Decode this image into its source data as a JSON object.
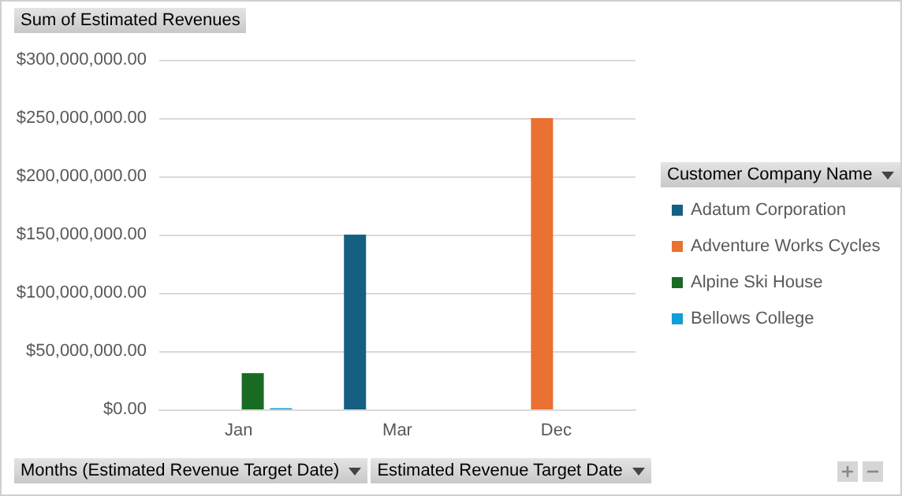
{
  "chart_data": {
    "type": "bar",
    "title": "Sum of Estimated Revenues",
    "legend_title": "Customer Company Name",
    "annotations": [
      "Months (Estimated Revenue Target Date)",
      "Estimated Revenue Target Date"
    ],
    "categories": [
      "Jan",
      "Mar",
      "Dec"
    ],
    "series": [
      {
        "name": "Adatum Corporation",
        "color": "#156082",
        "values": [
          null,
          150000000,
          null
        ]
      },
      {
        "name": "Adventure Works Cycles",
        "color": "#e97132",
        "values": [
          null,
          null,
          250000000
        ]
      },
      {
        "name": "Alpine Ski House",
        "color": "#196b24",
        "values": [
          31000000,
          null,
          null
        ]
      },
      {
        "name": "Bellows College",
        "color": "#0f9ed5",
        "values": [
          1000000,
          null,
          null
        ]
      }
    ],
    "ylim": [
      0,
      300000000
    ],
    "yticks": [
      {
        "value": 0,
        "label": "$0.00"
      },
      {
        "value": 50000000,
        "label": "$50,000,000.00"
      },
      {
        "value": 100000000,
        "label": "$100,000,000.00"
      },
      {
        "value": 150000000,
        "label": "$150,000,000.00"
      },
      {
        "value": 200000000,
        "label": "$200,000,000.00"
      },
      {
        "value": 250000000,
        "label": "$250,000,000.00"
      },
      {
        "value": 300000000,
        "label": "$300,000,000.00"
      }
    ],
    "grid": "y",
    "legend": "right"
  }
}
